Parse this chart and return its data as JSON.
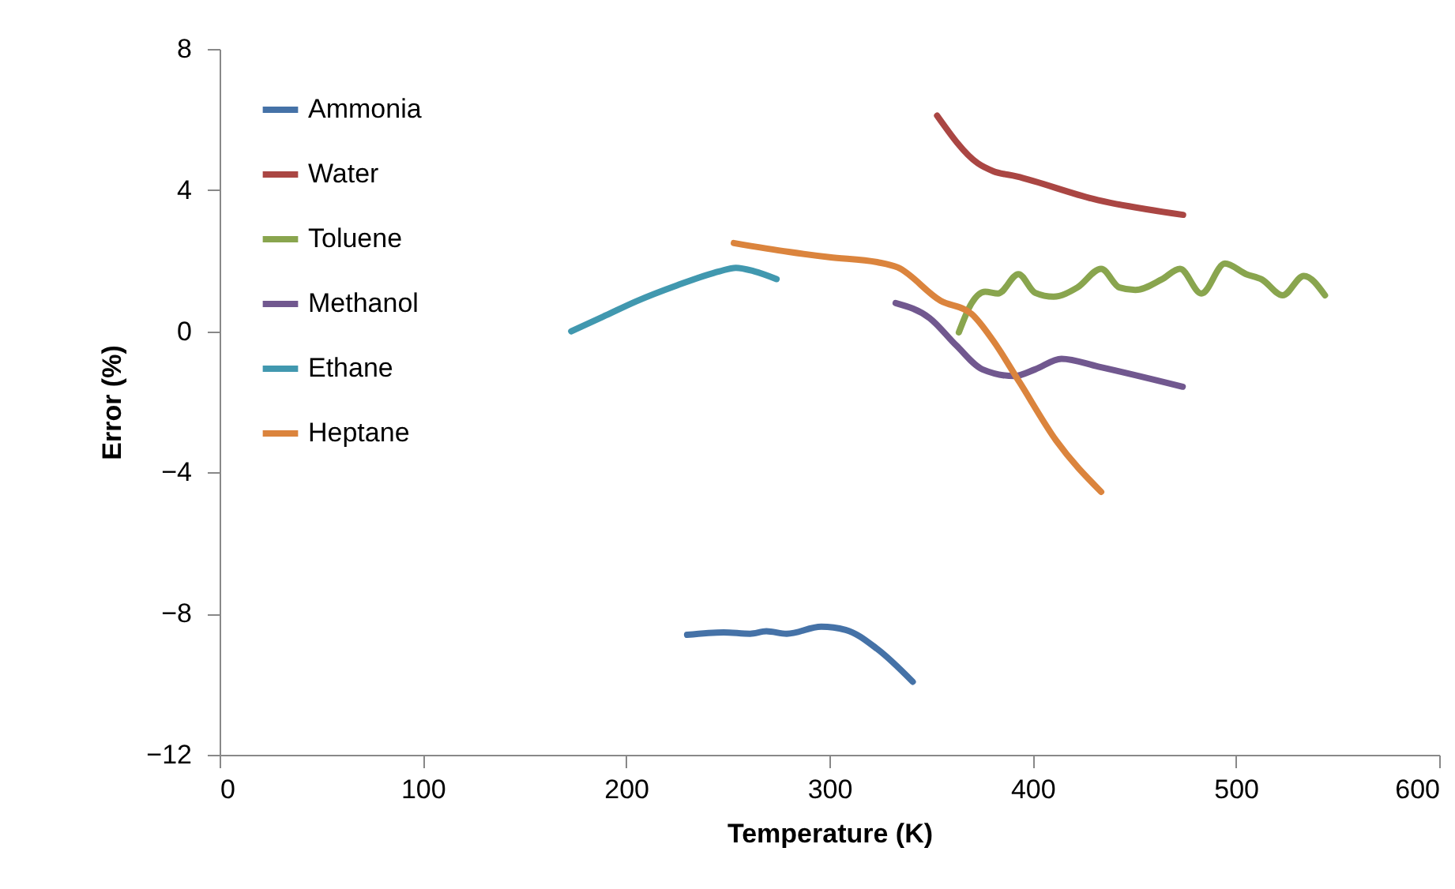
{
  "chart_data": {
    "type": "line",
    "xlabel": "Temperature (K)",
    "ylabel": "Error (%)",
    "xlim": [
      0,
      600
    ],
    "xticks": [
      0,
      100,
      200,
      300,
      400,
      500,
      600
    ],
    "ylim": [
      -12,
      8
    ],
    "yticks": [
      -12,
      -8,
      -4,
      0,
      4,
      8
    ],
    "grid": false,
    "legend": "top left",
    "marker": "none",
    "line_style": "solid",
    "series": [
      {
        "name": "Ammonia",
        "color": "#4572a7",
        "x": [
          230,
          248,
          261,
          269,
          279,
          296,
          308,
          323.5,
          341
        ],
        "values": [
          -8.6,
          -8.53,
          -8.57,
          -8.5,
          -8.57,
          -8.37,
          -8.46,
          -9.0,
          -9.93
        ]
      },
      {
        "name": "Water",
        "color": "#aa4643",
        "x": [
          353,
          373,
          380.5,
          392,
          432,
          474
        ],
        "values": [
          6.11,
          4.76,
          4.54,
          4.39,
          3.72,
          3.3
        ]
      },
      {
        "name": "Toluene",
        "color": "#89a54e",
        "x": [
          363.7,
          370,
          376.6,
          383,
          393,
          401.2,
          410.3,
          422,
          433.7,
          442.7,
          450.5,
          463.5,
          472.5,
          483,
          494.6,
          505,
          512.7,
          523,
          533.4,
          543.8
        ],
        "values": [
          -0.03,
          0.8,
          1.12,
          1.07,
          1.62,
          1.09,
          0.98,
          1.24,
          1.77,
          1.24,
          1.17,
          1.47,
          1.77,
          1.07,
          1.92,
          1.62,
          1.47,
          1.02,
          1.57,
          1.02
        ]
      },
      {
        "name": "Methanol",
        "color": "#71588f",
        "x": [
          332.6,
          349.4,
          362.4,
          375.3,
          391,
          401.2,
          414.2,
          432.3,
          473.8
        ],
        "values": [
          0.8,
          0.37,
          -0.4,
          -1.08,
          -1.27,
          -1.08,
          -0.78,
          -1.0,
          -1.57
        ]
      },
      {
        "name": "Ethane",
        "color": "#4198af",
        "x": [
          173,
          190,
          205,
          225,
          246,
          254,
          263,
          274
        ],
        "values": [
          0,
          0.45,
          0.85,
          1.3,
          1.7,
          1.8,
          1.7,
          1.48
        ]
      },
      {
        "name": "Heptane",
        "color": "#db843d",
        "x": [
          253,
          280,
          300,
          323.5,
          333.6,
          354.6,
          370,
          380.5,
          393.5,
          411.6,
          433.7
        ],
        "values": [
          2.5,
          2.25,
          2.1,
          1.96,
          1.81,
          0.87,
          0.49,
          -0.26,
          -1.44,
          -3.1,
          -4.55
        ]
      }
    ]
  }
}
